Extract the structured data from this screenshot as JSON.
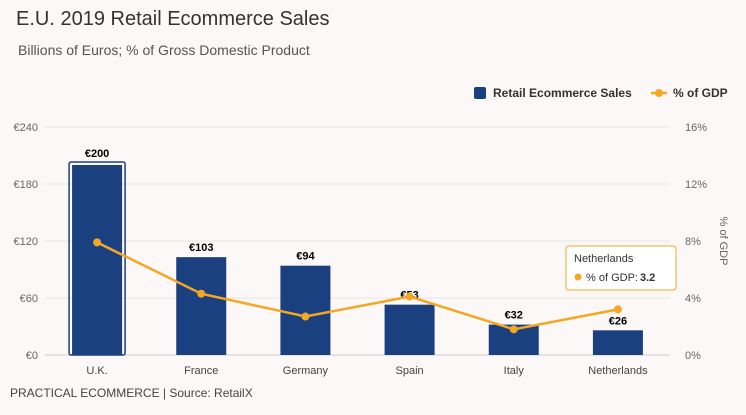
{
  "title": "E.U. 2019 Retail Ecommerce Sales",
  "subtitle": "Billions of Euros; % of Gross Domestic Product",
  "source": "PRACTICAL ECOMMERCE | Source: RetailX",
  "chart_data": {
    "type": "bar",
    "categories": [
      "U.K.",
      "France",
      "Germany",
      "Spain",
      "Italy",
      "Netherlands"
    ],
    "series": [
      {
        "name": "Retail Ecommerce Sales",
        "type": "bar",
        "axis": "left",
        "color": "#1a4080",
        "values": [
          200,
          103,
          94,
          53,
          32,
          26
        ],
        "labels": [
          "€200",
          "€103",
          "€94",
          "€53",
          "€32",
          "€26"
        ]
      },
      {
        "name": "% of GDP",
        "type": "line",
        "axis": "right",
        "color": "#f5a623",
        "values": [
          7.9,
          4.3,
          2.7,
          4.1,
          1.8,
          3.2
        ]
      }
    ],
    "y_left": {
      "min": 0,
      "max": 240,
      "ticks": [
        "€0",
        "€60",
        "€120",
        "€180",
        "€240"
      ],
      "tick_values": [
        0,
        60,
        120,
        180,
        240
      ]
    },
    "y_right": {
      "min": 0,
      "max": 16,
      "ticks": [
        "0%",
        "4%",
        "8%",
        "12%",
        "16%"
      ],
      "tick_values": [
        0,
        4,
        8,
        12,
        16
      ],
      "label": "% of GDP"
    },
    "legend_position": "top-right",
    "grid": true,
    "highlighted_bar": "U.K.",
    "tooltip": {
      "category": "Netherlands",
      "series": "% of GDP: ",
      "value": "3.2"
    }
  }
}
